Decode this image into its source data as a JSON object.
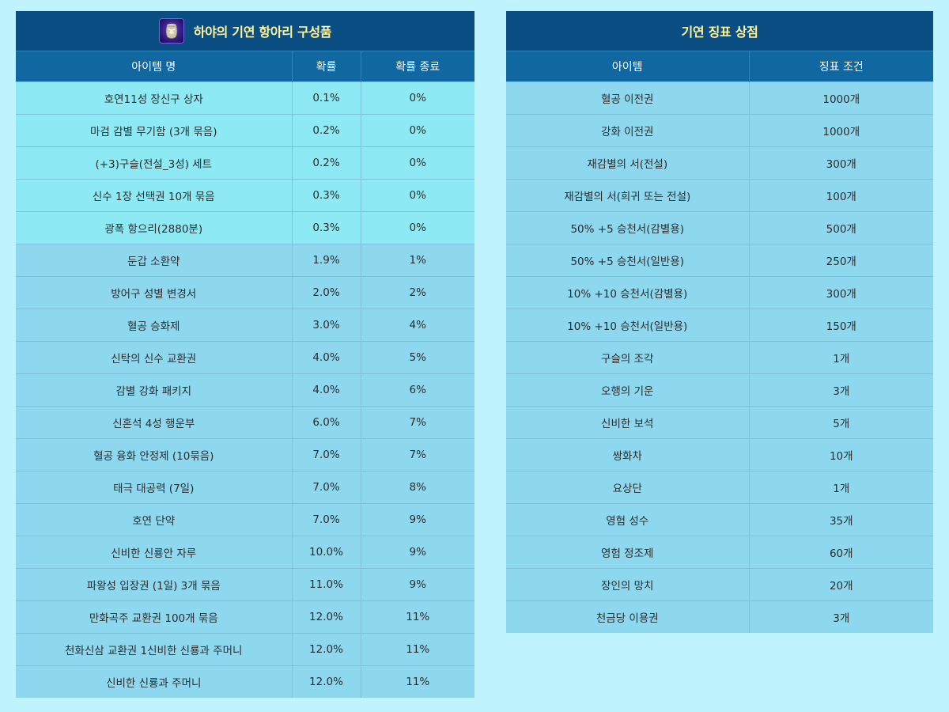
{
  "box": {
    "title": "하야의 기연 항아리 구성품",
    "icon": "jar-icon",
    "headers": [
      "아이템 명",
      "확률",
      "확률 종료"
    ],
    "rows": [
      [
        "호연11성 장신구 상자",
        "0.1%",
        "0%"
      ],
      [
        "마검 감별 무기함 (3개 묶음)",
        "0.2%",
        "0%"
      ],
      [
        "(+3)구슬(전설_3성) 세트",
        "0.2%",
        "0%"
      ],
      [
        "신수 1장 선택권 10개 묶음",
        "0.3%",
        "0%"
      ],
      [
        "광폭 항으리(2880분)",
        "0.3%",
        "0%"
      ],
      [
        "둔갑 소환약",
        "1.9%",
        "1%"
      ],
      [
        "방어구 성별 변경서",
        "2.0%",
        "2%"
      ],
      [
        "혈공 승화제",
        "3.0%",
        "4%"
      ],
      [
        "신탁의 신수 교환권",
        "4.0%",
        "5%"
      ],
      [
        "감별 강화 패키지",
        "4.0%",
        "6%"
      ],
      [
        "신혼석 4성 행운부",
        "6.0%",
        "7%"
      ],
      [
        "혈공 융화 안정제 (10묶음)",
        "7.0%",
        "7%"
      ],
      [
        "태극 대공력 (7일)",
        "7.0%",
        "8%"
      ],
      [
        "호연 단약",
        "7.0%",
        "9%"
      ],
      [
        "신비한 신룡안 자루",
        "10.0%",
        "9%"
      ],
      [
        "파왕성 입장권 (1일) 3개 묶음",
        "11.0%",
        "9%"
      ],
      [
        "만화곡주 교환권 100개 묶음",
        "12.0%",
        "11%"
      ],
      [
        "천화신삼 교환권 1신비한 신룡과 주머니",
        "12.0%",
        "11%"
      ],
      [
        "신비한 신룡과 주머니",
        "12.0%",
        "11%"
      ]
    ]
  },
  "shop": {
    "title": "기연 징표 상점",
    "headers": [
      "아이템",
      "징표 조건"
    ],
    "rows": [
      [
        "혈공 이전권",
        "1000개"
      ],
      [
        "강화 이전권",
        "1000개"
      ],
      [
        "재감별의 서(전설)",
        "300개"
      ],
      [
        "재감별의 서(희귀 또는 전설)",
        "100개"
      ],
      [
        "50% +5 승천서(감별용)",
        "500개"
      ],
      [
        "50% +5 승천서(일반용)",
        "250개"
      ],
      [
        "10% +10 승천서(감별용)",
        "300개"
      ],
      [
        "10% +10 승천서(일반용)",
        "150개"
      ],
      [
        "구슬의 조각",
        "1개"
      ],
      [
        "오행의 기운",
        "3개"
      ],
      [
        "신비한 보석",
        "5개"
      ],
      [
        "쌍화차",
        "10개"
      ],
      [
        "요상단",
        "1개"
      ],
      [
        "영험 성수",
        "35개"
      ],
      [
        "영험 정조제",
        "60개"
      ],
      [
        "장인의 망치",
        "20개"
      ],
      [
        "천금당 이용권",
        "3개"
      ]
    ]
  },
  "colors": {
    "page_bg": "#bff3fd",
    "title_bg": "#0b4e83",
    "title_text": "#fff49a",
    "header_bg": "#11679f",
    "row_highlight": "#8deaf5",
    "row_normal": "#8ed8ef"
  }
}
